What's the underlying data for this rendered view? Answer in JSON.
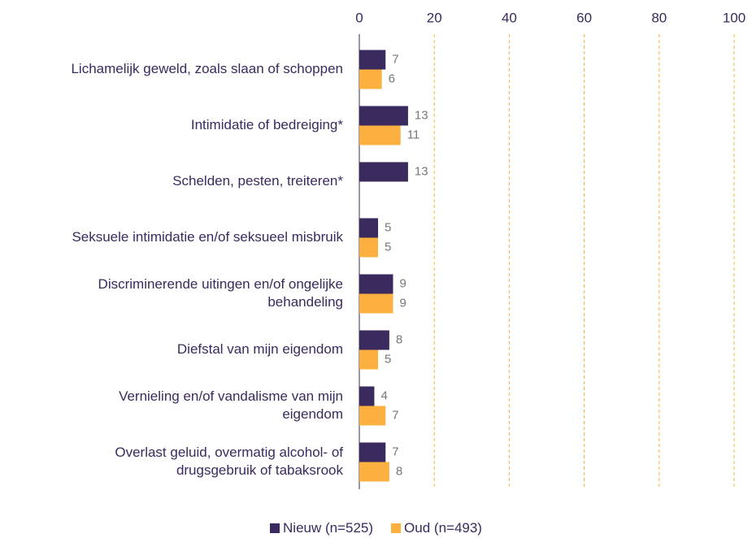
{
  "chart_data": {
    "type": "bar",
    "orientation": "horizontal",
    "categories": [
      "Lichamelijk geweld, zoals slaan of schoppen",
      "Intimidatie of bedreiging*",
      "Schelden, pesten, treiteren*",
      "Seksuele intimidatie en/of seksueel misbruik",
      "Discriminerende uitingen en/of ongelijke\nbehandeling",
      "Diefstal van mijn eigendom",
      "Vernieling en/of vandalisme van mijn\neigendom",
      "Overlast geluid, overmatig alcohol- of\ndrugsgebruik of tabaksrook"
    ],
    "series": [
      {
        "name": "Nieuw (n=525)",
        "color": "#3b2a5e",
        "values": [
          7,
          13,
          13,
          5,
          9,
          8,
          4,
          7
        ]
      },
      {
        "name": "Oud (n=493)",
        "color": "#fbb040",
        "values": [
          6,
          11,
          null,
          5,
          9,
          5,
          7,
          8
        ]
      }
    ],
    "xlim": [
      0,
      100
    ],
    "xticks": [
      0,
      20,
      40,
      60,
      80,
      100
    ],
    "grid": true,
    "legend": "bottom"
  }
}
